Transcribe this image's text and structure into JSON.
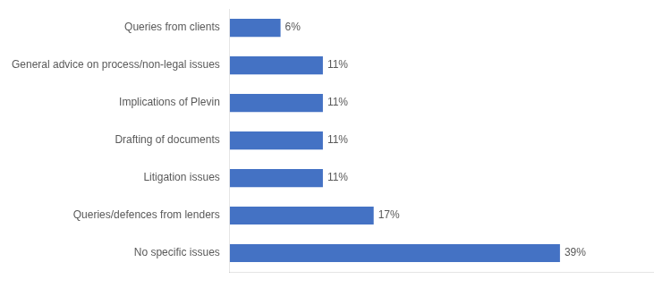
{
  "chart_data": {
    "type": "bar",
    "orientation": "horizontal",
    "categories": [
      "No specific issues",
      "Queries/defences from lenders",
      "Litigation issues",
      "Drafting of documents",
      "Implications of Plevin",
      "General advice on process/non-legal issues",
      "Queries from clients"
    ],
    "values": [
      39,
      17,
      11,
      11,
      11,
      11,
      6
    ],
    "value_labels": [
      "39%",
      "17%",
      "11%",
      "11%",
      "11%",
      "11%",
      "6%"
    ],
    "data_labels": true,
    "color": "#4472C4",
    "xlim": [
      0,
      50
    ],
    "tick_labels": "y",
    "grid": false
  }
}
